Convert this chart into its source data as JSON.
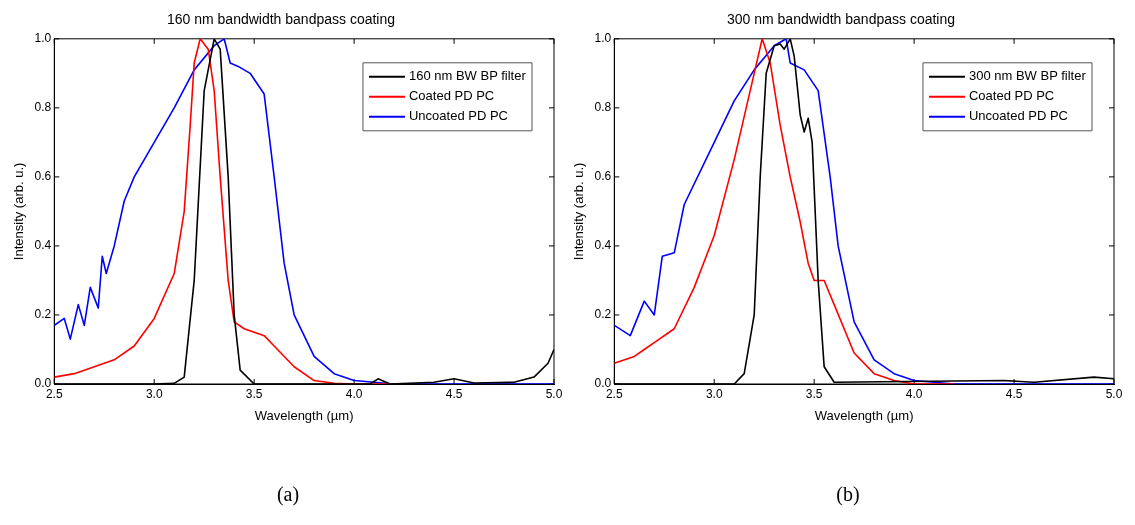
{
  "chart_data": [
    {
      "type": "line",
      "title": "160 nm bandwidth bandpass coating",
      "xlabel": "Wavelength (µm)",
      "ylabel": "Intensity (arb. u.)",
      "xlim": [
        2.5,
        5.0
      ],
      "ylim": [
        0,
        1.0
      ],
      "xticks": [
        {
          "value": 2.5,
          "label": "2.5"
        },
        {
          "value": 3.0,
          "label": "3.0"
        },
        {
          "value": 3.5,
          "label": "3.5"
        },
        {
          "value": 4.0,
          "label": "4.0"
        },
        {
          "value": 4.5,
          "label": "4.5"
        },
        {
          "value": 5.0,
          "label": "5.0"
        }
      ],
      "yticks": [
        {
          "value": 0,
          "label": "0.0"
        },
        {
          "value": 0.2,
          "label": "0.2"
        },
        {
          "value": 0.4,
          "label": "0.4"
        },
        {
          "value": 0.6,
          "label": "0.6"
        },
        {
          "value": 0.8,
          "label": "0.8"
        },
        {
          "value": 1.0,
          "label": "1.0"
        }
      ],
      "grid": false,
      "legend": "top right",
      "marker": "none",
      "line_style": "solid",
      "annotations": [
        "(a)"
      ],
      "series": [
        {
          "name": "160 nm BW BP filter",
          "color": "#000000",
          "x": [
            2.5,
            3.0,
            3.1,
            3.15,
            3.2,
            3.25,
            3.3,
            3.33,
            3.37,
            3.4,
            3.43,
            3.5,
            4.08,
            4.12,
            4.18,
            4.4,
            4.5,
            4.6,
            4.8,
            4.9,
            4.97,
            5.0
          ],
          "values": [
            0,
            0,
            0.002,
            0.02,
            0.3,
            0.85,
            1.0,
            0.97,
            0.6,
            0.2,
            0.04,
            0,
            0,
            0.015,
            0,
            0.005,
            0.015,
            0.003,
            0.005,
            0.02,
            0.06,
            0.1
          ]
        },
        {
          "name": "Coated PD PC",
          "color": "#ff0000",
          "x": [
            2.5,
            2.6,
            2.7,
            2.8,
            2.9,
            3.0,
            3.1,
            3.15,
            3.18,
            3.2,
            3.23,
            3.27,
            3.3,
            3.33,
            3.37,
            3.4,
            3.45,
            3.55,
            3.6,
            3.7,
            3.8,
            3.9,
            4.0,
            4.2
          ],
          "values": [
            0.02,
            0.03,
            0.05,
            0.07,
            0.11,
            0.19,
            0.32,
            0.5,
            0.75,
            0.93,
            1.0,
            0.97,
            0.85,
            0.6,
            0.3,
            0.18,
            0.16,
            0.14,
            0.11,
            0.05,
            0.01,
            0.002,
            0,
            0
          ]
        },
        {
          "name": "Uncoated PD PC",
          "color": "#0000ff",
          "x": [
            2.5,
            2.55,
            2.58,
            2.62,
            2.65,
            2.68,
            2.72,
            2.74,
            2.76,
            2.8,
            2.85,
            2.9,
            3.0,
            3.1,
            3.2,
            3.3,
            3.35,
            3.38,
            3.42,
            3.48,
            3.55,
            3.6,
            3.65,
            3.7,
            3.8,
            3.9,
            4.0,
            4.2,
            5.0
          ],
          "values": [
            0.17,
            0.19,
            0.13,
            0.23,
            0.17,
            0.28,
            0.22,
            0.37,
            0.32,
            0.4,
            0.53,
            0.6,
            0.7,
            0.8,
            0.91,
            0.98,
            1.0,
            0.93,
            0.92,
            0.9,
            0.84,
            0.6,
            0.35,
            0.2,
            0.08,
            0.03,
            0.01,
            0,
            0
          ]
        }
      ]
    },
    {
      "type": "line",
      "title": "300 nm bandwidth bandpass coating",
      "xlabel": "Wavelength (µm)",
      "ylabel": "Intensity (arb. u.)",
      "xlim": [
        2.5,
        5.0
      ],
      "ylim": [
        0,
        1.0
      ],
      "xticks": [
        {
          "value": 2.5,
          "label": "2.5"
        },
        {
          "value": 3.0,
          "label": "3.0"
        },
        {
          "value": 3.5,
          "label": "3.5"
        },
        {
          "value": 4.0,
          "label": "4.0"
        },
        {
          "value": 4.5,
          "label": "4.5"
        },
        {
          "value": 5.0,
          "label": "5.0"
        }
      ],
      "yticks": [
        {
          "value": 0,
          "label": "0.0"
        },
        {
          "value": 0.2,
          "label": "0.2"
        },
        {
          "value": 0.4,
          "label": "0.4"
        },
        {
          "value": 0.6,
          "label": "0.6"
        },
        {
          "value": 0.8,
          "label": "0.8"
        },
        {
          "value": 1.0,
          "label": "1.0"
        }
      ],
      "grid": false,
      "legend": "top right",
      "marker": "none",
      "line_style": "solid",
      "annotations": [
        "(b)"
      ],
      "series": [
        {
          "name": "300 nm BW BP filter",
          "color": "#000000",
          "x": [
            2.5,
            3.1,
            3.15,
            3.2,
            3.23,
            3.26,
            3.3,
            3.33,
            3.35,
            3.38,
            3.4,
            3.43,
            3.45,
            3.47,
            3.49,
            3.52,
            3.55,
            3.6,
            4.45,
            4.6,
            4.9,
            5.0
          ],
          "values": [
            0,
            0,
            0.03,
            0.2,
            0.6,
            0.9,
            0.98,
            0.985,
            0.97,
            1.0,
            0.95,
            0.78,
            0.73,
            0.77,
            0.7,
            0.3,
            0.05,
            0.005,
            0.01,
            0.005,
            0.02,
            0.015
          ]
        },
        {
          "name": "Coated PD PC",
          "color": "#ff0000",
          "x": [
            2.5,
            2.6,
            2.65,
            2.7,
            2.8,
            2.9,
            3.0,
            3.1,
            3.2,
            3.24,
            3.28,
            3.33,
            3.38,
            3.43,
            3.47,
            3.5,
            3.55,
            3.6,
            3.7,
            3.8,
            3.9,
            4.0,
            4.2
          ],
          "values": [
            0.06,
            0.08,
            0.1,
            0.12,
            0.16,
            0.28,
            0.43,
            0.65,
            0.9,
            1.0,
            0.93,
            0.75,
            0.6,
            0.47,
            0.35,
            0.3,
            0.3,
            0.23,
            0.09,
            0.03,
            0.01,
            0,
            0
          ]
        },
        {
          "name": "Uncoated PD PC",
          "color": "#0000ff",
          "x": [
            2.5,
            2.58,
            2.65,
            2.7,
            2.74,
            2.8,
            2.85,
            3.0,
            3.1,
            3.2,
            3.3,
            3.36,
            3.38,
            3.45,
            3.52,
            3.58,
            3.62,
            3.7,
            3.8,
            3.9,
            4.0,
            4.2,
            5.0
          ],
          "values": [
            0.17,
            0.14,
            0.24,
            0.2,
            0.37,
            0.38,
            0.52,
            0.7,
            0.82,
            0.91,
            0.98,
            1.0,
            0.93,
            0.91,
            0.85,
            0.6,
            0.4,
            0.18,
            0.07,
            0.03,
            0.01,
            0,
            0
          ]
        }
      ]
    }
  ]
}
